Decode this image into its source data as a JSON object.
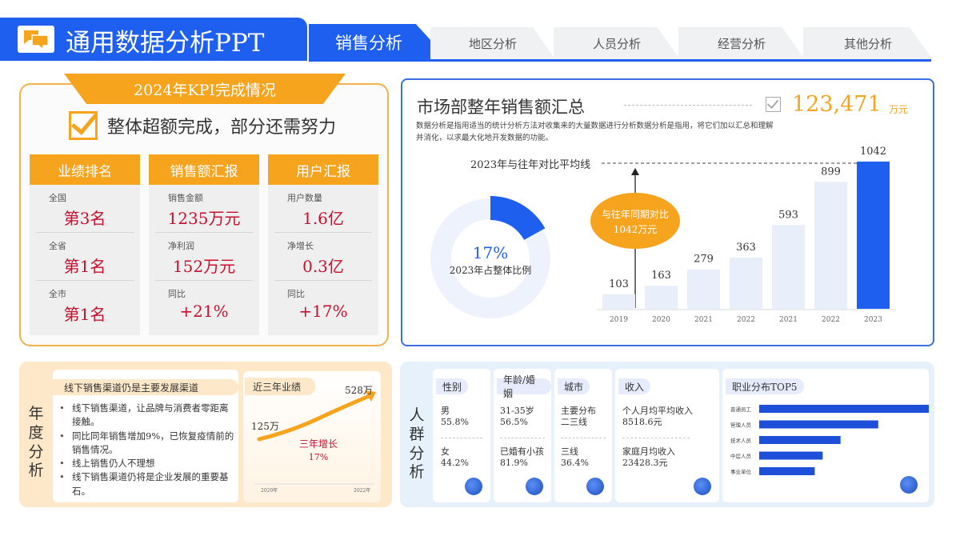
{
  "header": {
    "title": "通用数据分析PPT",
    "tabs": [
      {
        "label": "销售分析",
        "active": true
      },
      {
        "label": "地区分析",
        "active": false
      },
      {
        "label": "人员分析",
        "active": false
      },
      {
        "label": "经营分析",
        "active": false
      },
      {
        "label": "其他分析",
        "active": false
      }
    ]
  },
  "kpi": {
    "banner": "2024年KPI完成情况",
    "subtitle": "整体超额完成，部分还需努力",
    "columns": [
      {
        "title": "业绩排名",
        "items": [
          {
            "label": "全国",
            "value": "第3名"
          },
          {
            "label": "全省",
            "value": "第1名"
          },
          {
            "label": "全市",
            "value": "第1名"
          }
        ]
      },
      {
        "title": "销售额汇报",
        "items": [
          {
            "label": "销售金额",
            "value": "1235万元"
          },
          {
            "label": "净利润",
            "value": "152万元"
          },
          {
            "label": "同比",
            "value": "+21%"
          }
        ]
      },
      {
        "title": "用户汇报",
        "items": [
          {
            "label": "用户数量",
            "value": "1.6亿"
          },
          {
            "label": "净增长",
            "value": "0.3亿"
          },
          {
            "label": "同比",
            "value": "+17%"
          }
        ]
      }
    ]
  },
  "sales": {
    "title": "市场部整年销售额汇总",
    "total": "123,471",
    "unit": "万元",
    "description": "数据分析是指用适当的统计分析方法对收集来的大量数据进行分析数据分析是指用，将它们加以汇总和理解并消化，以求最大化地开发数据的功能。",
    "avg_label": "2023年与往年对比平均线",
    "donut": {
      "percent": "17%",
      "label": "2023年占整体比例",
      "fraction": 0.17
    },
    "callout": {
      "line1": "与往年同期对比",
      "line2": "1042万元"
    }
  },
  "chart_data": {
    "type": "bar",
    "categories": [
      "2019",
      "2020",
      "2021",
      "2022",
      "2021",
      "2022",
      "2023"
    ],
    "values": [
      103,
      163,
      279,
      363,
      593,
      899,
      1042
    ],
    "highlight_index": 6,
    "colors": {
      "normal": "#e9eefb",
      "highlight": "#1e5ff0"
    }
  },
  "yearly": {
    "side_label": "年度分析",
    "tag": "线下销售渠道仍是主要发展渠道",
    "bullets": [
      "线下销售渠道，让品牌与消费者零距离接触。",
      "同比同年销售增加9%，已恢复疫情前的销售情况。",
      "线上销售仍人不理想",
      "线下销售渠道仍将是企业发展的重要基石。"
    ],
    "chart_tag": "近三年业绩",
    "start_value": "125万",
    "end_value": "528万",
    "growth_label": "三年增长",
    "growth_value": "17%",
    "x_start": "2020年",
    "x_end": "2022年"
  },
  "crowd": {
    "side_label": "人群分析",
    "gender": {
      "title": "性别",
      "a_label": "男",
      "a_value": "55.8%",
      "b_label": "女",
      "b_value": "44.2%"
    },
    "age": {
      "title": "年龄/婚姻",
      "a_label": "31-35岁",
      "a_value": "56.5%",
      "b_label": "已婚有小孩",
      "b_value": "81.9%"
    },
    "city": {
      "title": "城市",
      "a_label": "主要分布二三线",
      "b_label": "三线",
      "b_value": "36.4%"
    },
    "income": {
      "title": "收入",
      "a_label": "个人月均平均收入",
      "a_value": "8518.6元",
      "b_label": "家庭月均收入",
      "b_value": "23428.3元"
    },
    "jobs": {
      "title": "职业分布TOP5",
      "items": [
        {
          "label": "普通员工",
          "value": 1.0
        },
        {
          "label": "管理人员",
          "value": 0.6
        },
        {
          "label": "技术人员",
          "value": 0.41
        },
        {
          "label": "中层人员",
          "value": 0.32
        },
        {
          "label": "事业单位",
          "value": 0.28
        }
      ]
    }
  }
}
